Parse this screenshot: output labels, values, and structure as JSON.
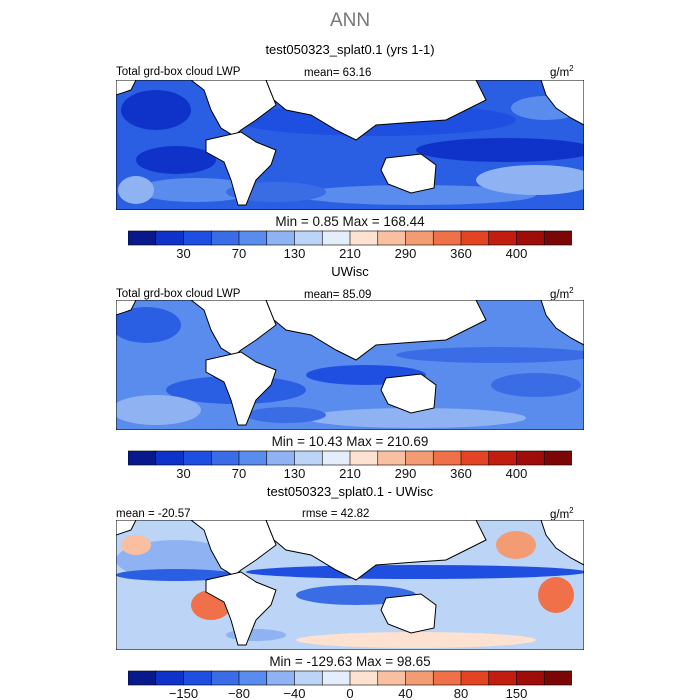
{
  "figure": {
    "title": "ANN",
    "units_prefix": "g/m",
    "units_exp": "2"
  },
  "chart_data": [
    {
      "type": "heatmap",
      "title": "test050323_splat0.1 (yrs 1-1)",
      "left_label": "Total grd-box cloud LWP",
      "center_label": "mean=  63.16",
      "min_max": "Min =    0.85  Max = 168.44",
      "colorbar_ticks": [
        "30",
        "70",
        "130",
        "210",
        "290",
        "360",
        "400"
      ],
      "colorbar_colors": [
        "#08198c",
        "#0f33c9",
        "#1f4fe0",
        "#3a6ce6",
        "#5a8ced",
        "#8fb3f2",
        "#bcd4f6",
        "#e4eefb",
        "#fde1d1",
        "#f8bfa0",
        "#f39b73",
        "#ef7049",
        "#e24424",
        "#c11d10",
        "#9e0d0a",
        "#7a0606"
      ],
      "mean": 63.16,
      "min": 0.85,
      "max": 168.44
    },
    {
      "type": "heatmap",
      "title": "UWisc",
      "left_label": "Total grd-box cloud LWP",
      "center_label": "mean=  85.09",
      "min_max": "Min =  10.43  Max = 210.69",
      "colorbar_ticks": [
        "30",
        "70",
        "130",
        "210",
        "290",
        "360",
        "400"
      ],
      "colorbar_colors": [
        "#08198c",
        "#0f33c9",
        "#1f4fe0",
        "#3a6ce6",
        "#5a8ced",
        "#8fb3f2",
        "#bcd4f6",
        "#e4eefb",
        "#fde1d1",
        "#f8bfa0",
        "#f39b73",
        "#ef7049",
        "#e24424",
        "#c11d10",
        "#9e0d0a",
        "#7a0606"
      ],
      "mean": 85.09,
      "min": 10.43,
      "max": 210.69
    },
    {
      "type": "heatmap",
      "title": "test050323_splat0.1 - UWisc",
      "left_label": "mean = -20.57",
      "center_label": "rmse =  42.82",
      "min_max": "Min = -129.63  Max =  98.65",
      "colorbar_ticks": [
        "−150",
        "−80",
        "−40",
        "0",
        "40",
        "80",
        "150"
      ],
      "colorbar_colors": [
        "#08198c",
        "#0f33c9",
        "#1f4fe0",
        "#3a6ce6",
        "#5a8ced",
        "#8fb3f2",
        "#bcd4f6",
        "#e4eefb",
        "#fde1d1",
        "#f8bfa0",
        "#f39b73",
        "#ef7049",
        "#e24424",
        "#c11d10",
        "#9e0d0a",
        "#7a0606"
      ],
      "mean": -20.57,
      "rmse": 42.82,
      "min": -129.63,
      "max": 98.65
    }
  ]
}
